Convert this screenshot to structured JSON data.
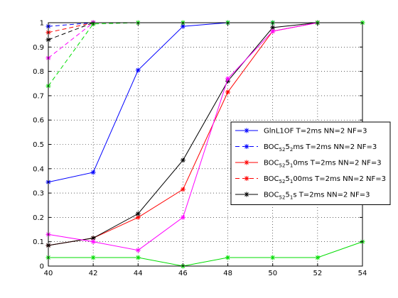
{
  "chart_data": {
    "type": "line",
    "title": "",
    "xlabel": "",
    "ylabel": "",
    "xlim": [
      40,
      54
    ],
    "ylim": [
      0,
      1
    ],
    "x_ticks": [
      "40",
      "42",
      "44",
      "46",
      "48",
      "50",
      "52",
      "54"
    ],
    "y_ticks": [
      "0",
      "0.1",
      "0.2",
      "0.3",
      "0.4",
      "0.5",
      "0.6",
      "0.7",
      "0.8",
      "0.9",
      "1"
    ],
    "grid": true,
    "legend_position": "right",
    "series": [
      {
        "name": "GlnL1OF T=2ms NN=2 NF=3",
        "legend_label": "GlnL1OF T=2ms NN=2 NF=3",
        "color": "#0000ff",
        "dash": false,
        "marker": "*",
        "x": [
          40,
          42,
          44,
          46,
          48,
          50,
          52
        ],
        "y": [
          0.345,
          0.385,
          0.805,
          0.985,
          1.0,
          1.0,
          1.0
        ]
      },
      {
        "name": "BOC5252ms T=2ms NN=2 NF=3",
        "legend_label": "BOC",
        "legend_sub1": "52",
        "legend_mid": "5",
        "legend_sub2": "2",
        "legend_rest": "ms T=2ms NN=2 NF=3",
        "color": "#0000ff",
        "dash": true,
        "marker": "*",
        "x": [
          40,
          42
        ],
        "y": [
          0.985,
          1.0
        ]
      },
      {
        "name": "BOC5251 0ms T=2ms NN=2 NF=3",
        "legend_label": "BOC",
        "legend_sub1": "52",
        "legend_mid": "5",
        "legend_sub2": "1",
        "legend_rest": "0ms T=2ms NN=2 NF=3",
        "color": "#ff0000",
        "dash": false,
        "marker": "*",
        "x": [
          40,
          42,
          44,
          46,
          48,
          50,
          52
        ],
        "y": [
          0.085,
          0.115,
          0.2,
          0.315,
          0.715,
          0.965,
          1.0
        ]
      },
      {
        "name": "BOC5251 00ms T=2ms NN=2 NF=3",
        "legend_label": "BOC",
        "legend_sub1": "52",
        "legend_mid": "5",
        "legend_sub2": "1",
        "legend_rest": "00ms T=2ms NN=2 NF=3",
        "color": "#ff0000",
        "dash": true,
        "marker": "*",
        "x": [
          40,
          42
        ],
        "y": [
          0.96,
          1.0
        ]
      },
      {
        "name": "BOC5251s T=2ms NN=2 NF=3",
        "legend_label": "BOC",
        "legend_sub1": "52",
        "legend_mid": "5",
        "legend_sub2": "1",
        "legend_rest": "s T=2ms NN=2 NF=3",
        "color": "#000000",
        "dash": false,
        "marker": "*",
        "x": [
          40,
          42,
          44,
          46,
          48,
          50,
          52
        ],
        "y": [
          0.085,
          0.115,
          0.215,
          0.435,
          0.76,
          0.98,
          1.0
        ]
      },
      {
        "name": "black dashed",
        "color": "#000000",
        "dash": true,
        "marker": "*",
        "in_legend": false,
        "x": [
          40,
          42
        ],
        "y": [
          0.93,
          1.0
        ]
      },
      {
        "name": "magenta solid",
        "color": "#ff00ff",
        "dash": false,
        "marker": "*",
        "in_legend": false,
        "x": [
          40,
          42,
          44,
          46,
          48,
          50,
          52
        ],
        "y": [
          0.13,
          0.1,
          0.065,
          0.2,
          0.77,
          0.965,
          1.0
        ]
      },
      {
        "name": "magenta dashed",
        "color": "#ff00ff",
        "dash": true,
        "marker": "*",
        "in_legend": false,
        "x": [
          40,
          42
        ],
        "y": [
          0.855,
          1.0
        ]
      },
      {
        "name": "green solid",
        "color": "#00dd00",
        "dash": false,
        "marker": "*",
        "in_legend": false,
        "x": [
          40,
          42,
          44,
          46,
          48,
          50,
          52,
          54
        ],
        "y": [
          0.035,
          0.035,
          0.035,
          0.0,
          0.035,
          0.035,
          0.035,
          0.1
        ]
      },
      {
        "name": "green dashed",
        "color": "#00dd00",
        "dash": true,
        "marker": "*",
        "in_legend": false,
        "x": [
          40,
          42,
          44,
          46,
          48,
          50,
          52,
          54
        ],
        "y": [
          0.74,
          0.995,
          1.0,
          1.0,
          1.0,
          1.0,
          1.0,
          1.0
        ]
      }
    ]
  }
}
